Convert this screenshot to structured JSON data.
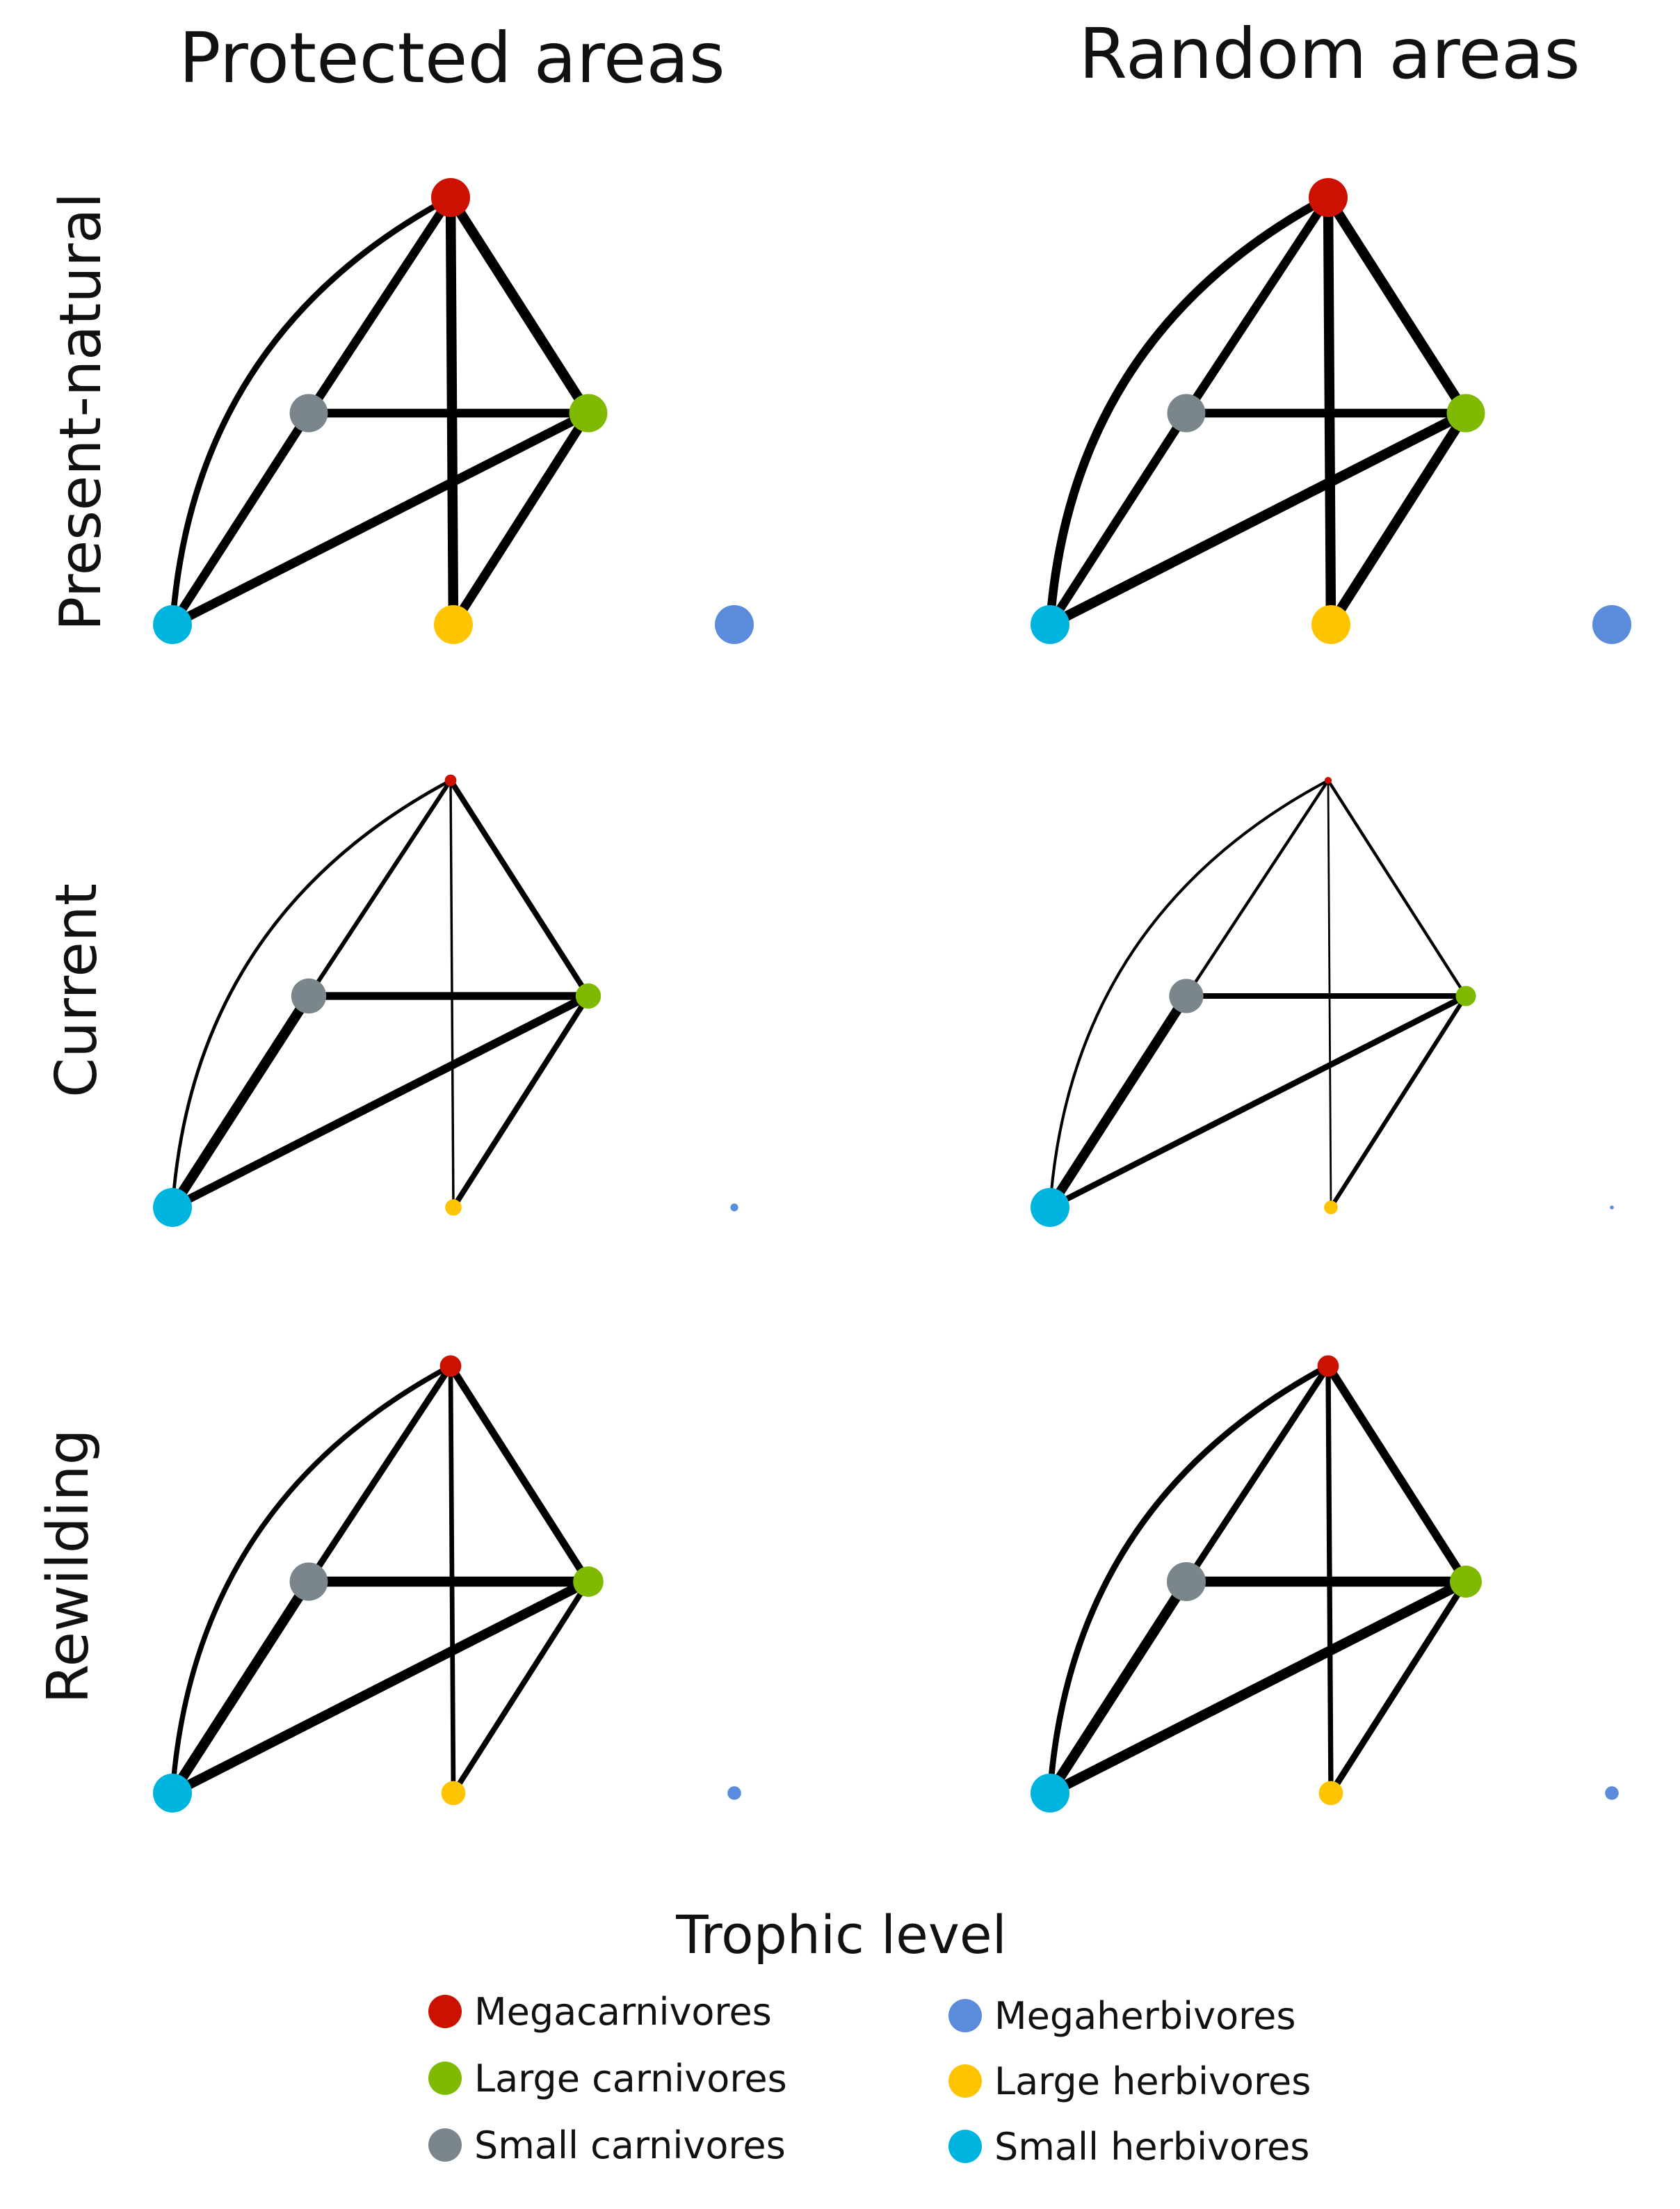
{
  "columns": [
    "Protected areas",
    "Random areas"
  ],
  "rows": [
    "Present-natural",
    "Current",
    "Rewilding"
  ],
  "legend": {
    "title": "Trophic level",
    "items": [
      {
        "key": "megacarnivores",
        "label": "Megacarnivores",
        "color": "#cc1100"
      },
      {
        "key": "large_carnivores",
        "label": "Large carnivores",
        "color": "#7fba00"
      },
      {
        "key": "small_carnivores",
        "label": "Small carnivores",
        "color": "#7b868c"
      },
      {
        "key": "megaherbivores",
        "label": "Megaherbivores",
        "color": "#5b8bdb"
      },
      {
        "key": "large_herbivores",
        "label": "Large herbivores",
        "color": "#ffc400"
      },
      {
        "key": "small_herbivores",
        "label": "Small herbivores",
        "color": "#00b4e0"
      }
    ]
  },
  "networks": [
    {
      "column": "Protected areas",
      "row": "Present-natural",
      "node_sizes": {
        "megacarnivores": 1.0,
        "large_carnivores": 0.98,
        "small_carnivores": 0.98,
        "megaherbivores": 1.0,
        "large_herbivores": 1.0,
        "small_herbivores": 1.0
      },
      "edges": [
        {
          "from": "megacarnivores",
          "to": "small_herbivores",
          "weight": 0.55
        },
        {
          "from": "megacarnivores",
          "to": "small_carnivores",
          "weight": 0.85
        },
        {
          "from": "megacarnivores",
          "to": "large_herbivores",
          "weight": 1.0
        },
        {
          "from": "megacarnivores",
          "to": "large_carnivores",
          "weight": 1.0
        },
        {
          "from": "small_carnivores",
          "to": "large_carnivores",
          "weight": 0.85
        },
        {
          "from": "small_carnivores",
          "to": "small_herbivores",
          "weight": 0.85
        },
        {
          "from": "large_carnivores",
          "to": "small_herbivores",
          "weight": 0.9
        },
        {
          "from": "large_carnivores",
          "to": "large_herbivores",
          "weight": 0.9
        }
      ]
    },
    {
      "column": "Random areas",
      "row": "Present-natural",
      "node_sizes": {
        "megacarnivores": 1.0,
        "large_carnivores": 0.98,
        "small_carnivores": 0.98,
        "megaherbivores": 1.0,
        "large_herbivores": 1.0,
        "small_herbivores": 1.0
      },
      "edges": [
        {
          "from": "megacarnivores",
          "to": "small_herbivores",
          "weight": 0.85
        },
        {
          "from": "megacarnivores",
          "to": "small_carnivores",
          "weight": 0.85
        },
        {
          "from": "megacarnivores",
          "to": "large_herbivores",
          "weight": 1.0
        },
        {
          "from": "megacarnivores",
          "to": "large_carnivores",
          "weight": 1.0
        },
        {
          "from": "small_carnivores",
          "to": "large_carnivores",
          "weight": 0.85
        },
        {
          "from": "small_carnivores",
          "to": "small_herbivores",
          "weight": 0.85
        },
        {
          "from": "large_carnivores",
          "to": "small_herbivores",
          "weight": 1.0
        },
        {
          "from": "large_carnivores",
          "to": "large_herbivores",
          "weight": 1.0
        }
      ]
    },
    {
      "column": "Protected areas",
      "row": "Current",
      "node_sizes": {
        "megacarnivores": 0.3,
        "large_carnivores": 0.65,
        "small_carnivores": 0.9,
        "megaherbivores": 0.2,
        "large_herbivores": 0.42,
        "small_herbivores": 1.0
      },
      "edges": [
        {
          "from": "megacarnivores",
          "to": "small_herbivores",
          "weight": 0.25
        },
        {
          "from": "megacarnivores",
          "to": "small_carnivores",
          "weight": 0.35
        },
        {
          "from": "megacarnivores",
          "to": "large_herbivores",
          "weight": 0.15
        },
        {
          "from": "megacarnivores",
          "to": "large_carnivores",
          "weight": 0.5
        },
        {
          "from": "small_carnivores",
          "to": "large_carnivores",
          "weight": 0.75
        },
        {
          "from": "small_carnivores",
          "to": "small_herbivores",
          "weight": 1.0
        },
        {
          "from": "large_carnivores",
          "to": "small_herbivores",
          "weight": 0.8
        },
        {
          "from": "large_carnivores",
          "to": "large_herbivores",
          "weight": 0.5
        }
      ]
    },
    {
      "column": "Random areas",
      "row": "Current",
      "node_sizes": {
        "megacarnivores": 0.18,
        "large_carnivores": 0.52,
        "small_carnivores": 0.88,
        "megaherbivores": 0.1,
        "large_herbivores": 0.35,
        "small_herbivores": 1.0
      },
      "edges": [
        {
          "from": "megacarnivores",
          "to": "small_herbivores",
          "weight": 0.2
        },
        {
          "from": "megacarnivores",
          "to": "small_carnivores",
          "weight": 0.22
        },
        {
          "from": "megacarnivores",
          "to": "large_herbivores",
          "weight": 0.1
        },
        {
          "from": "megacarnivores",
          "to": "large_carnivores",
          "weight": 0.22
        },
        {
          "from": "small_carnivores",
          "to": "large_carnivores",
          "weight": 0.5
        },
        {
          "from": "small_carnivores",
          "to": "small_herbivores",
          "weight": 0.95
        },
        {
          "from": "large_carnivores",
          "to": "small_herbivores",
          "weight": 0.55
        },
        {
          "from": "large_carnivores",
          "to": "large_herbivores",
          "weight": 0.35
        }
      ]
    },
    {
      "column": "Protected areas",
      "row": "Rewilding",
      "node_sizes": {
        "megacarnivores": 0.55,
        "large_carnivores": 0.78,
        "small_carnivores": 0.98,
        "megaherbivores": 0.35,
        "large_herbivores": 0.62,
        "small_herbivores": 1.0
      },
      "edges": [
        {
          "from": "megacarnivores",
          "to": "small_herbivores",
          "weight": 0.45
        },
        {
          "from": "megacarnivores",
          "to": "small_carnivores",
          "weight": 0.6
        },
        {
          "from": "megacarnivores",
          "to": "large_herbivores",
          "weight": 0.4
        },
        {
          "from": "megacarnivores",
          "to": "large_carnivores",
          "weight": 0.7
        },
        {
          "from": "small_carnivores",
          "to": "large_carnivores",
          "weight": 1.0
        },
        {
          "from": "small_carnivores",
          "to": "small_herbivores",
          "weight": 1.0
        },
        {
          "from": "large_carnivores",
          "to": "small_herbivores",
          "weight": 0.95
        },
        {
          "from": "large_carnivores",
          "to": "large_herbivores",
          "weight": 0.5
        }
      ]
    },
    {
      "column": "Random areas",
      "row": "Rewilding",
      "node_sizes": {
        "megacarnivores": 0.55,
        "large_carnivores": 0.82,
        "small_carnivores": 1.0,
        "megaherbivores": 0.35,
        "large_herbivores": 0.62,
        "small_herbivores": 1.0
      },
      "edges": [
        {
          "from": "megacarnivores",
          "to": "small_herbivores",
          "weight": 0.55
        },
        {
          "from": "megacarnivores",
          "to": "small_carnivores",
          "weight": 0.6
        },
        {
          "from": "megacarnivores",
          "to": "large_herbivores",
          "weight": 0.45
        },
        {
          "from": "megacarnivores",
          "to": "large_carnivores",
          "weight": 0.8
        },
        {
          "from": "small_carnivores",
          "to": "large_carnivores",
          "weight": 1.0
        },
        {
          "from": "small_carnivores",
          "to": "small_herbivores",
          "weight": 1.0
        },
        {
          "from": "large_carnivores",
          "to": "small_herbivores",
          "weight": 1.0
        },
        {
          "from": "large_carnivores",
          "to": "large_herbivores",
          "weight": 0.6
        }
      ]
    }
  ]
}
